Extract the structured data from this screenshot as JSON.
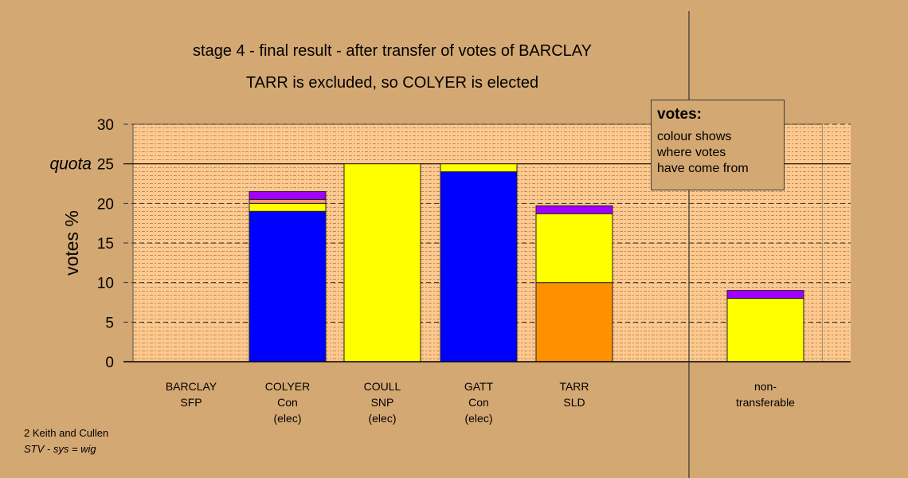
{
  "chart_data": {
    "type": "bar",
    "stacked": true,
    "title": "stage 4 - final result - after transfer of votes of BARCLAY",
    "subtitle": "TARR is excluded, so COLYER is elected",
    "ylabel": "votes %",
    "xlabel": "",
    "ylim": [
      0,
      30
    ],
    "yticks": [
      "0",
      "5",
      "10",
      "15",
      "20",
      "25",
      "30"
    ],
    "quota_label": "quota",
    "quota": 25,
    "grid": true,
    "categories": [
      {
        "name": "BARCLAY",
        "party": "SFP",
        "note": ""
      },
      {
        "name": "COLYER",
        "party": "Con",
        "note": "(elec)"
      },
      {
        "name": "COULL",
        "party": "SNP",
        "note": "(elec)"
      },
      {
        "name": "GATT",
        "party": "Con",
        "note": "(elec)"
      },
      {
        "name": "TARR",
        "party": "SLD",
        "note": ""
      },
      {
        "name": "non-",
        "party": "transferable",
        "note": ""
      }
    ],
    "series": [
      {
        "color": "#0000ff",
        "values": [
          0,
          19,
          0,
          24,
          0,
          0
        ]
      },
      {
        "color": "#ff9000",
        "values": [
          0,
          0,
          0,
          0,
          10,
          0
        ]
      },
      {
        "color": "#ffff00",
        "values": [
          0,
          1,
          25,
          1,
          8.7,
          8
        ]
      },
      {
        "color": "#ff9966",
        "values": [
          0,
          0.5,
          0,
          0,
          0,
          0
        ]
      },
      {
        "color": "#a000ff",
        "values": [
          0,
          1,
          0,
          0,
          1,
          1
        ]
      }
    ]
  },
  "legend": {
    "title": "votes:",
    "lines": [
      "colour shows",
      "where votes",
      "have come from"
    ]
  },
  "credits": {
    "line1": "2 Keith and Cullen",
    "line2": "STV - sys = wig"
  }
}
